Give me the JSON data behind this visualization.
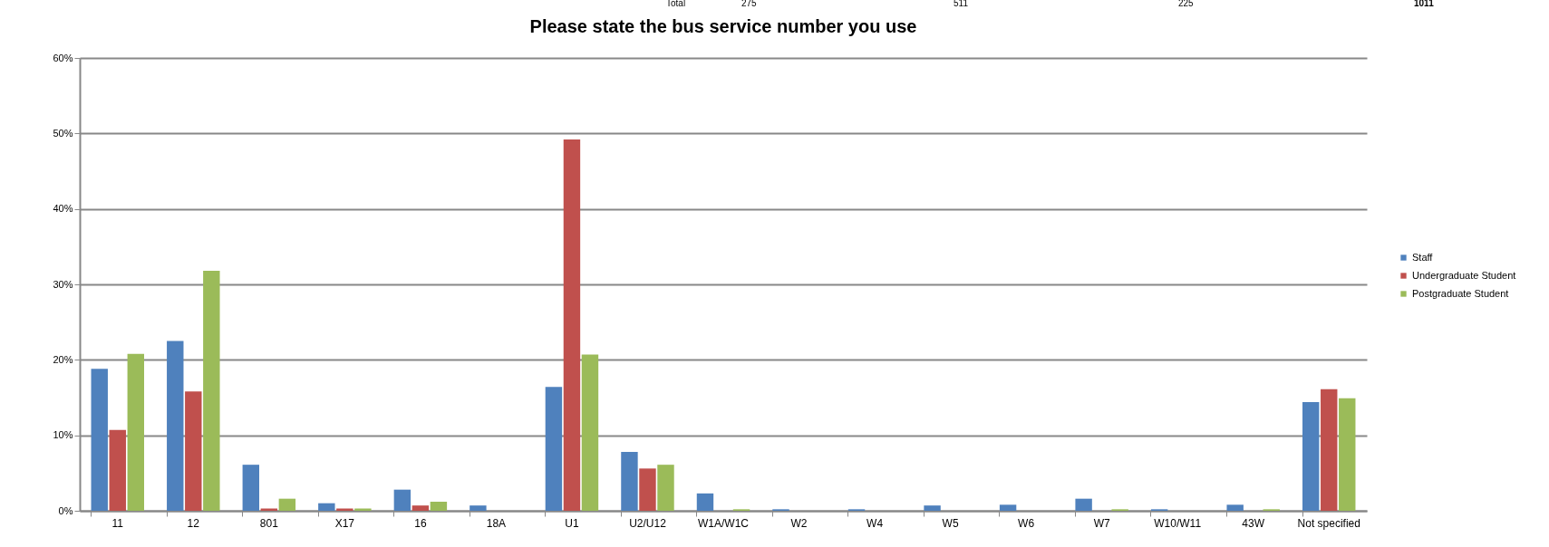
{
  "chart_data": {
    "type": "bar",
    "title": "Please state the bus service number you use",
    "categories": [
      "11",
      "12",
      "801",
      "X17",
      "16",
      "18A",
      "U1",
      "U2/U12",
      "W1A/W1C",
      "W2",
      "W4",
      "W5",
      "W6",
      "W7",
      "W10/W11",
      "43W",
      "Not specified"
    ],
    "series": [
      {
        "name": "Staff",
        "color": "#4f81bd",
        "values": [
          18.8,
          22.5,
          6.1,
          1.0,
          2.8,
          0.7,
          16.4,
          7.8,
          2.3,
          0.2,
          0.2,
          0.7,
          0.8,
          1.6,
          0.2,
          0.8,
          14.4
        ]
      },
      {
        "name": "Undergraduate Student",
        "color": "#c0504d",
        "values": [
          10.7,
          15.8,
          0.3,
          0.3,
          0.7,
          0,
          49.2,
          5.6,
          0,
          0,
          0,
          0,
          0,
          0,
          0,
          0,
          16.1
        ]
      },
      {
        "name": "Postgraduate Student",
        "color": "#9bbb59",
        "values": [
          20.8,
          31.8,
          1.6,
          0.3,
          1.2,
          0,
          20.7,
          6.1,
          0.2,
          0,
          0,
          0,
          0,
          0.2,
          0,
          0.2,
          14.9
        ]
      }
    ],
    "ylim": [
      0,
      60
    ],
    "yticks": [
      {
        "value": 0,
        "label": "0%"
      },
      {
        "value": 10,
        "label": "10%"
      },
      {
        "value": 20,
        "label": "20%"
      },
      {
        "value": 30,
        "label": "30%"
      },
      {
        "value": 40,
        "label": "40%"
      },
      {
        "value": 50,
        "label": "50%"
      },
      {
        "value": 60,
        "label": "60%"
      }
    ],
    "grid": "y",
    "legend": "right",
    "annotations": [
      "Total",
      "275",
      "511",
      "225",
      "1011"
    ]
  }
}
